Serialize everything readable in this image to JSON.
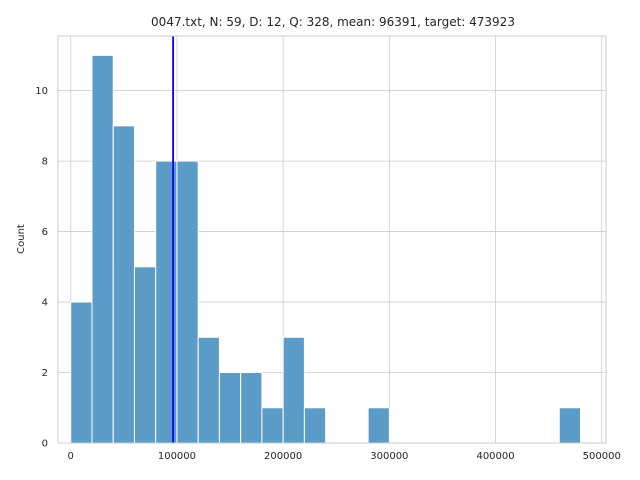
{
  "chart_data": {
    "type": "bar",
    "title": "0047.txt, N: 59, D: 12, Q: 328, mean: 96391, target: 473923",
    "xlabel": "",
    "ylabel": "Count",
    "xlim": [
      -12000,
      504000
    ],
    "ylim": [
      0,
      11.55
    ],
    "xticks": [
      0,
      100000,
      200000,
      300000,
      400000,
      500000
    ],
    "yticks": [
      0,
      2,
      4,
      6,
      8,
      10
    ],
    "grid": true,
    "bin_width": 20000,
    "bins": [
      {
        "x0": 0,
        "x1": 20000,
        "count": 4
      },
      {
        "x0": 20000,
        "x1": 40000,
        "count": 11
      },
      {
        "x0": 40000,
        "x1": 60000,
        "count": 9
      },
      {
        "x0": 60000,
        "x1": 80000,
        "count": 5
      },
      {
        "x0": 80000,
        "x1": 100000,
        "count": 8
      },
      {
        "x0": 100000,
        "x1": 120000,
        "count": 8
      },
      {
        "x0": 120000,
        "x1": 140000,
        "count": 3
      },
      {
        "x0": 140000,
        "x1": 160000,
        "count": 2
      },
      {
        "x0": 160000,
        "x1": 180000,
        "count": 2
      },
      {
        "x0": 180000,
        "x1": 200000,
        "count": 1
      },
      {
        "x0": 200000,
        "x1": 220000,
        "count": 3
      },
      {
        "x0": 220000,
        "x1": 240000,
        "count": 1
      },
      {
        "x0": 280000,
        "x1": 300000,
        "count": 1
      },
      {
        "x0": 460000,
        "x1": 480000,
        "count": 1
      }
    ],
    "mean_line": 96391,
    "colors": {
      "bar_fill": "#5b9bc8",
      "bar_edge": "#ffffff",
      "mean_line": "#0000ff",
      "grid": "#cccccc",
      "spine": "#cccccc"
    }
  }
}
